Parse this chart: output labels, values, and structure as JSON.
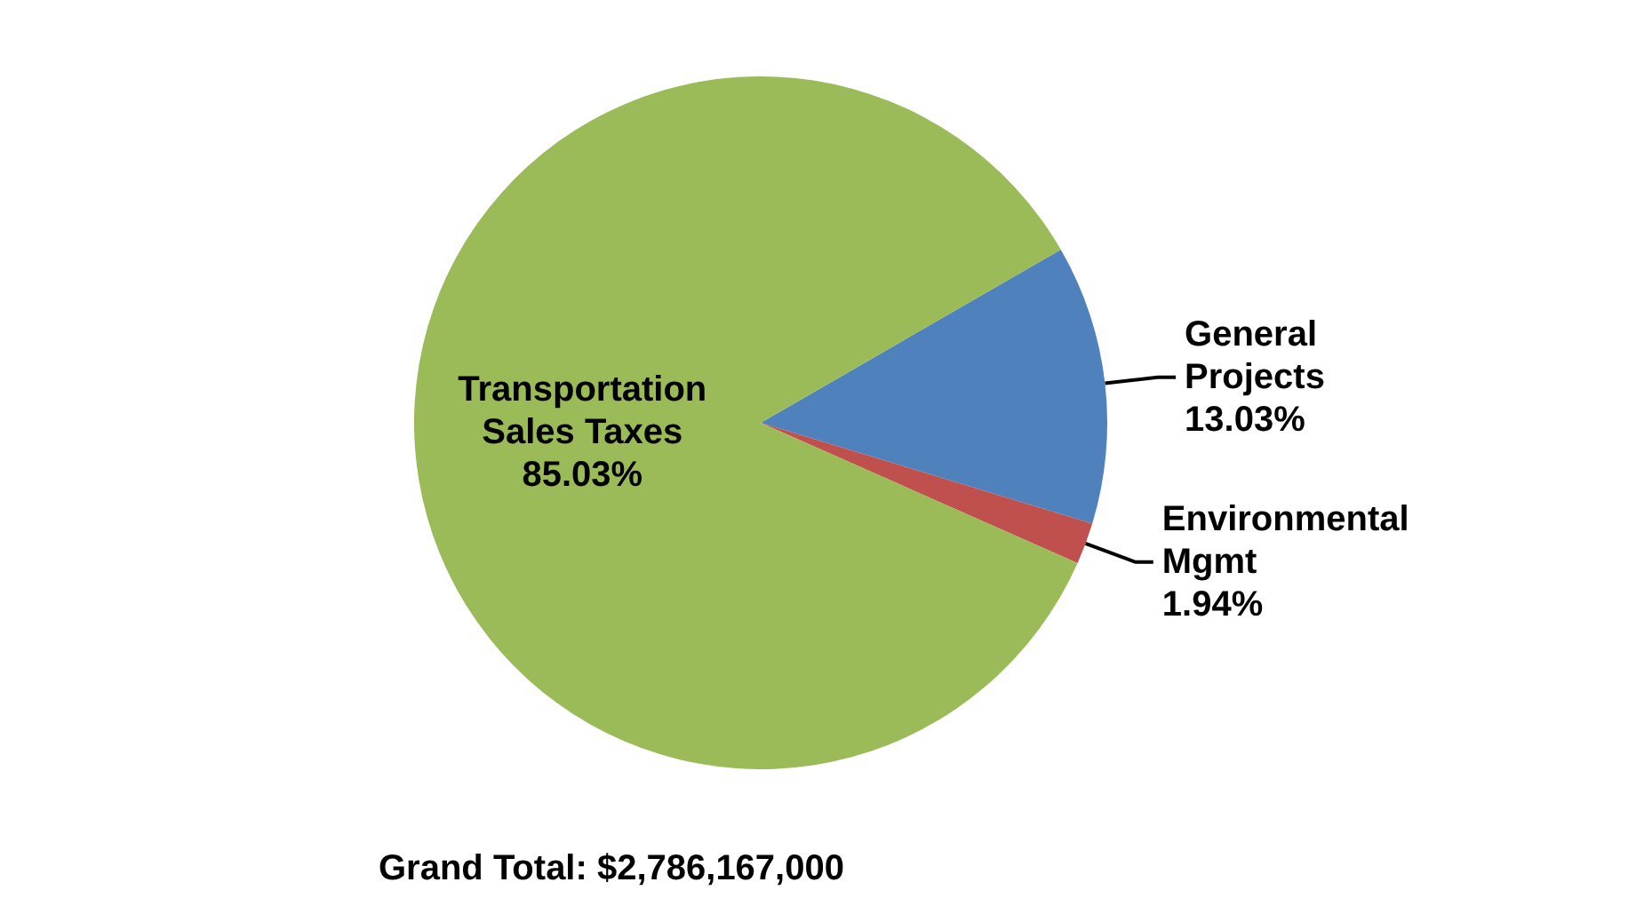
{
  "chart_data": {
    "type": "pie",
    "categories": [
      "General\nProjects",
      "Environmental\nMgmt",
      "Transportation\nSales Taxes"
    ],
    "values": [
      13.03,
      1.94,
      85.03
    ],
    "colors": [
      "#4f81bd",
      "#c0504d",
      "#9bbb59"
    ],
    "value_labels": [
      "13.03%",
      "1.94%",
      "85.03%"
    ],
    "legend": false,
    "annotations": [
      "Grand Total: $2,786,167,000"
    ]
  }
}
